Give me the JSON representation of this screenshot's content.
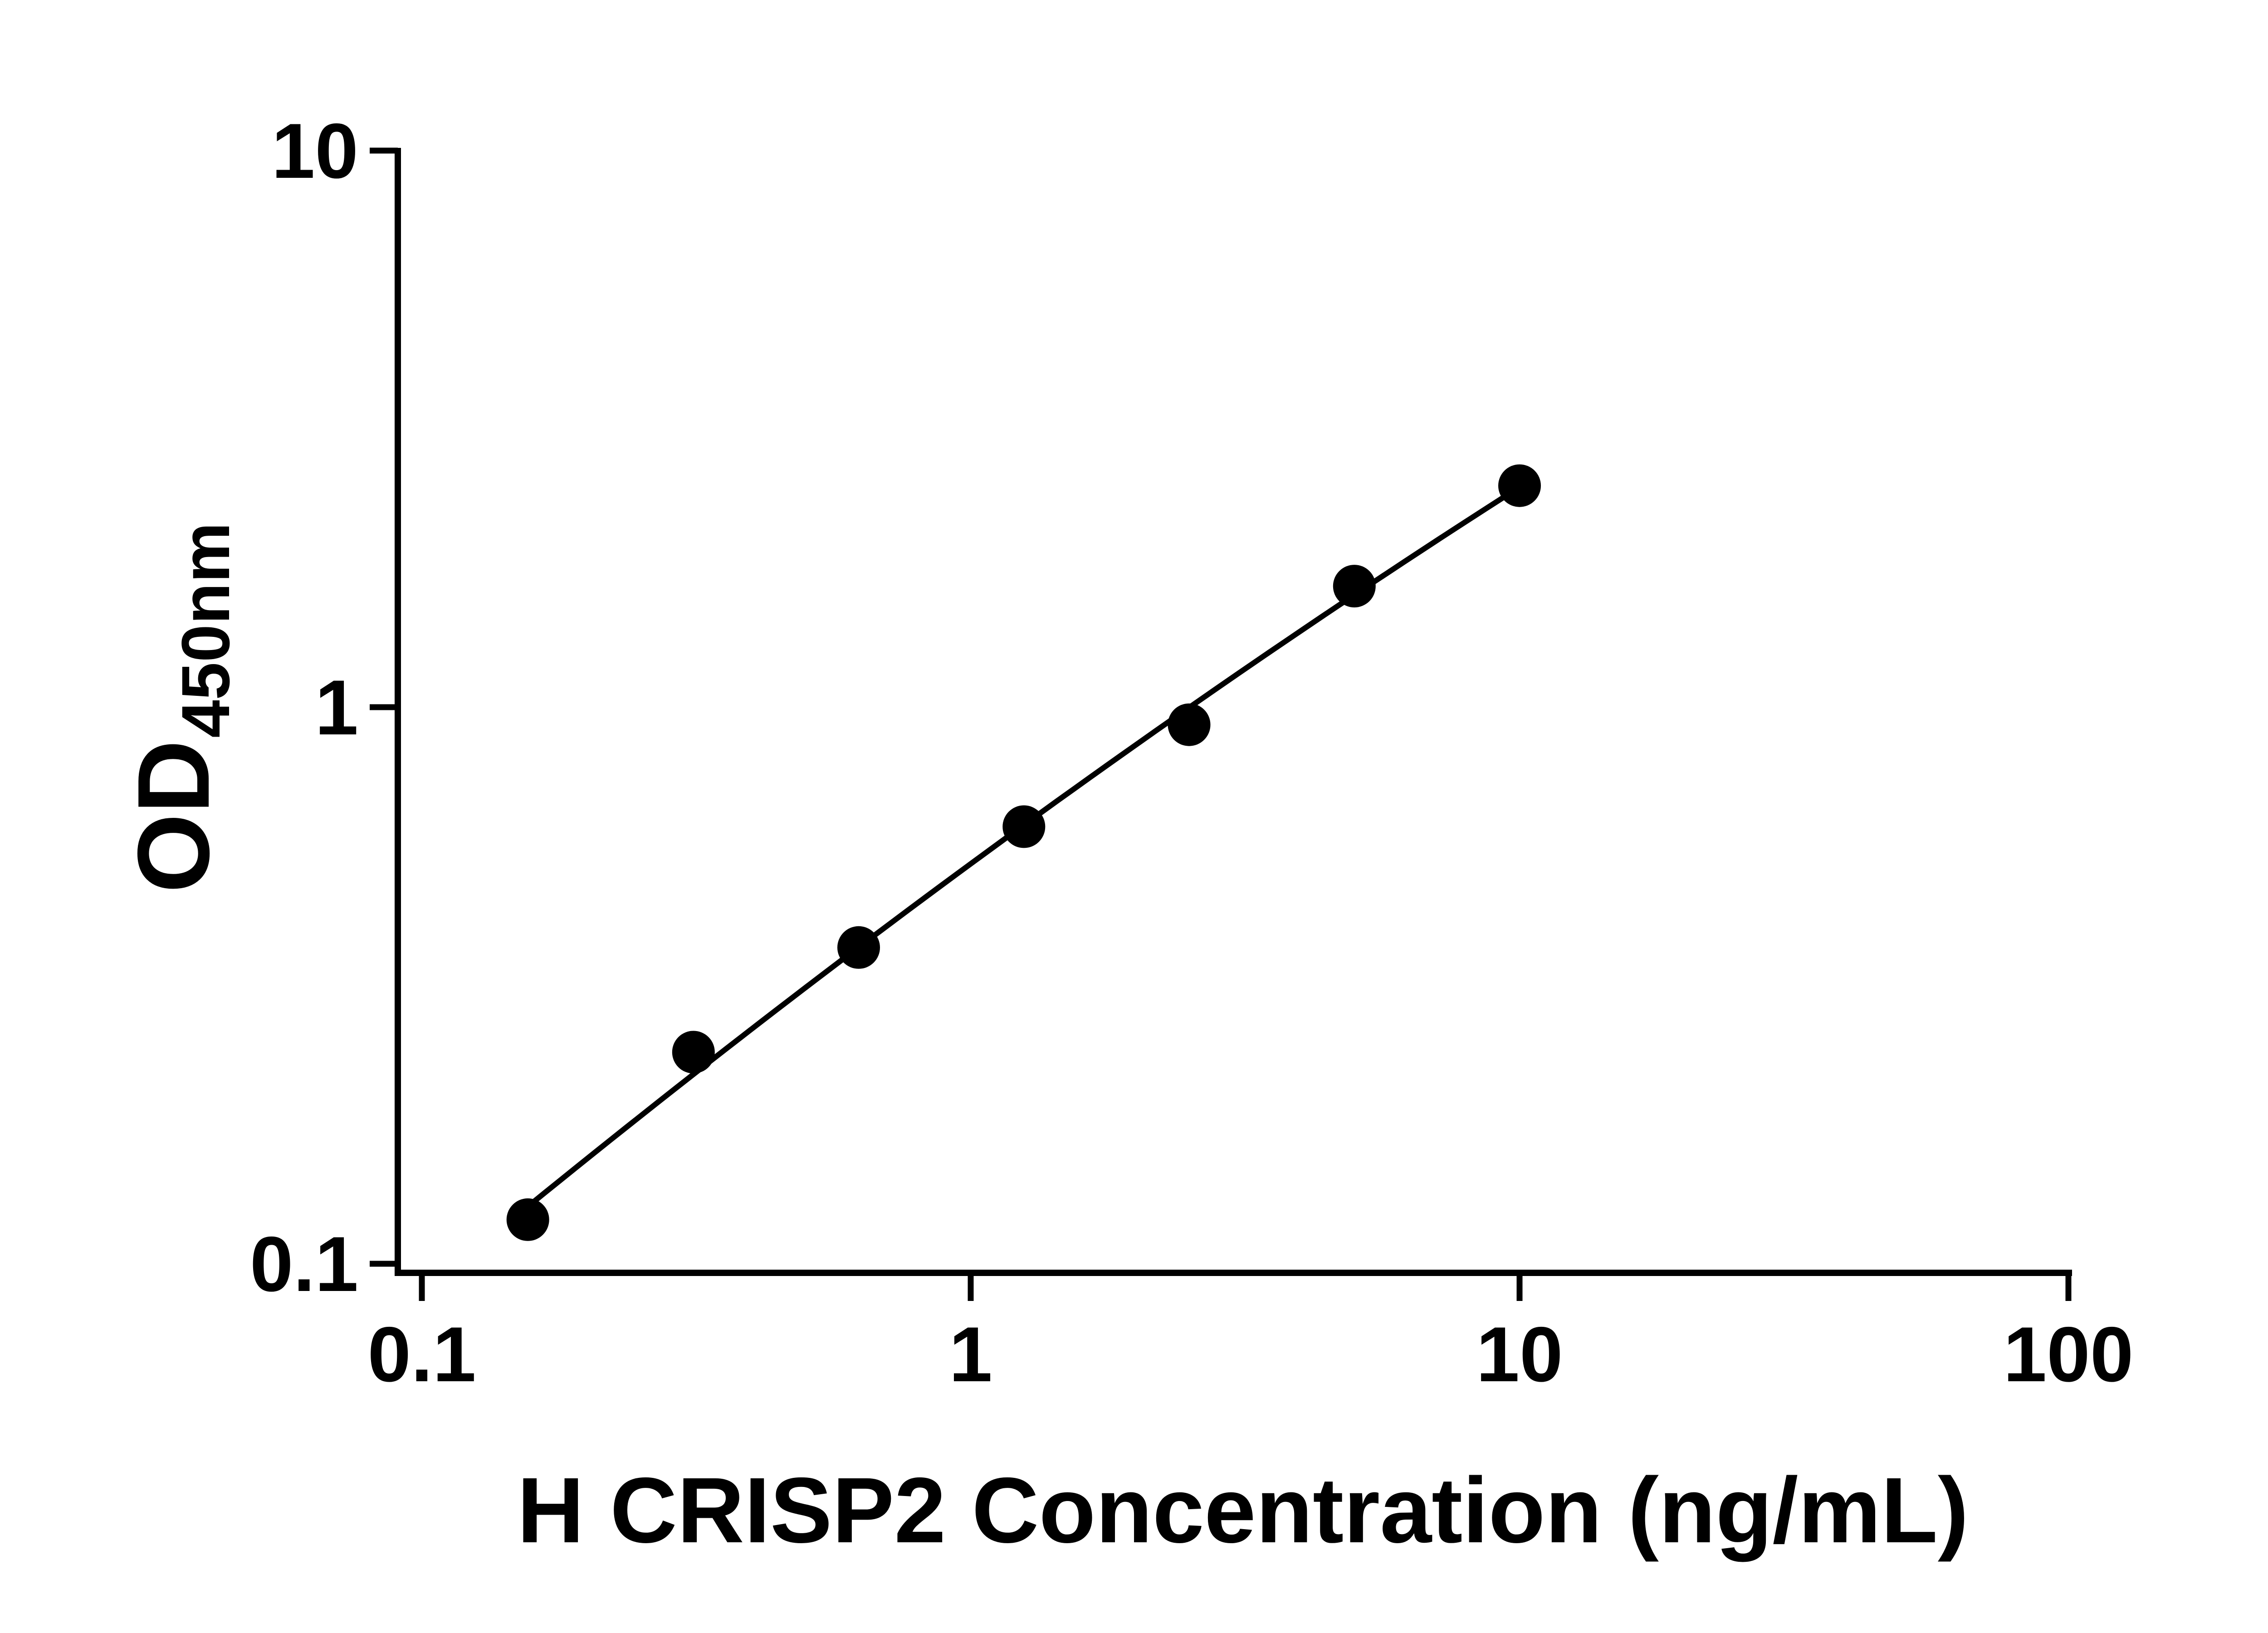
{
  "figure": {
    "background_color": "#ffffff",
    "plot_type": "ELISA standard curve"
  },
  "chart_data": {
    "type": "scatter",
    "title": "",
    "xlabel": "H CRISP2 Concentration (ng/mL)",
    "ylabel_main": "OD",
    "ylabel_sub": "450nm",
    "x_scale": "log",
    "y_scale": "log",
    "xlim": [
      0.1,
      100
    ],
    "ylim": [
      0.1,
      10
    ],
    "grid": false,
    "legend": "none",
    "marker_color": "#000000",
    "line_color": "#000000",
    "x_ticks": [
      {
        "value": 0.1,
        "label": "0.1"
      },
      {
        "value": 1,
        "label": "1"
      },
      {
        "value": 10,
        "label": "10"
      },
      {
        "value": 100,
        "label": "100"
      }
    ],
    "y_ticks": [
      {
        "value": 0.1,
        "label": "0.1"
      },
      {
        "value": 1,
        "label": "1"
      },
      {
        "value": 10,
        "label": "10"
      }
    ],
    "points": [
      {
        "x": 0.156,
        "y": 0.12
      },
      {
        "x": 0.3125,
        "y": 0.24
      },
      {
        "x": 0.625,
        "y": 0.37
      },
      {
        "x": 1.25,
        "y": 0.61
      },
      {
        "x": 2.5,
        "y": 0.93
      },
      {
        "x": 5,
        "y": 1.65
      },
      {
        "x": 10,
        "y": 2.5
      }
    ],
    "fit": "quadratic-loglog"
  }
}
